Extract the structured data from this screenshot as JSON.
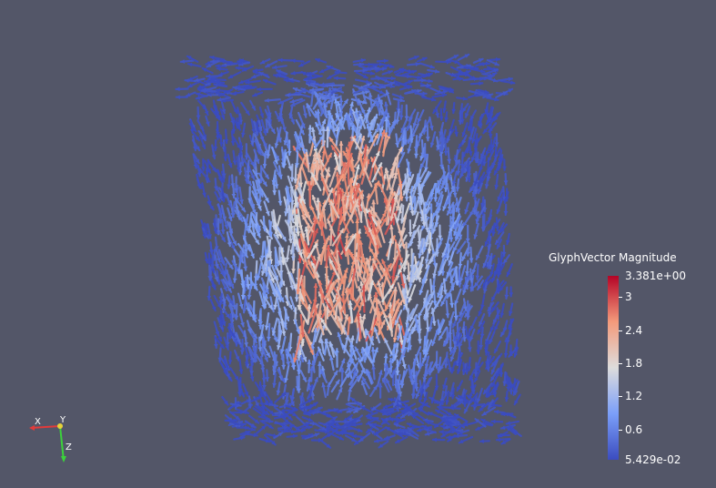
{
  "view": {
    "background": "#535668",
    "glyph_colormap_low": "#3b4cc0",
    "glyph_colormap_mid": "#dddcdc",
    "glyph_colormap_high": "#b40426"
  },
  "legend": {
    "title": "GlyphVector Magnitude",
    "max_label": "3.381e+00",
    "min_label": "5.429e-02",
    "ticks": [
      "3",
      "2.4",
      "1.8",
      "1.2",
      "0.6"
    ],
    "range": [
      0.05429,
      3.381
    ],
    "tick_values": [
      3,
      2.4,
      1.8,
      1.2,
      0.6
    ]
  },
  "axes": {
    "x_label": "X",
    "y_label": "Y",
    "z_label": "Z",
    "x_color": "#e23b3b",
    "y_color": "#e6d23a",
    "z_color": "#3bd23b"
  }
}
